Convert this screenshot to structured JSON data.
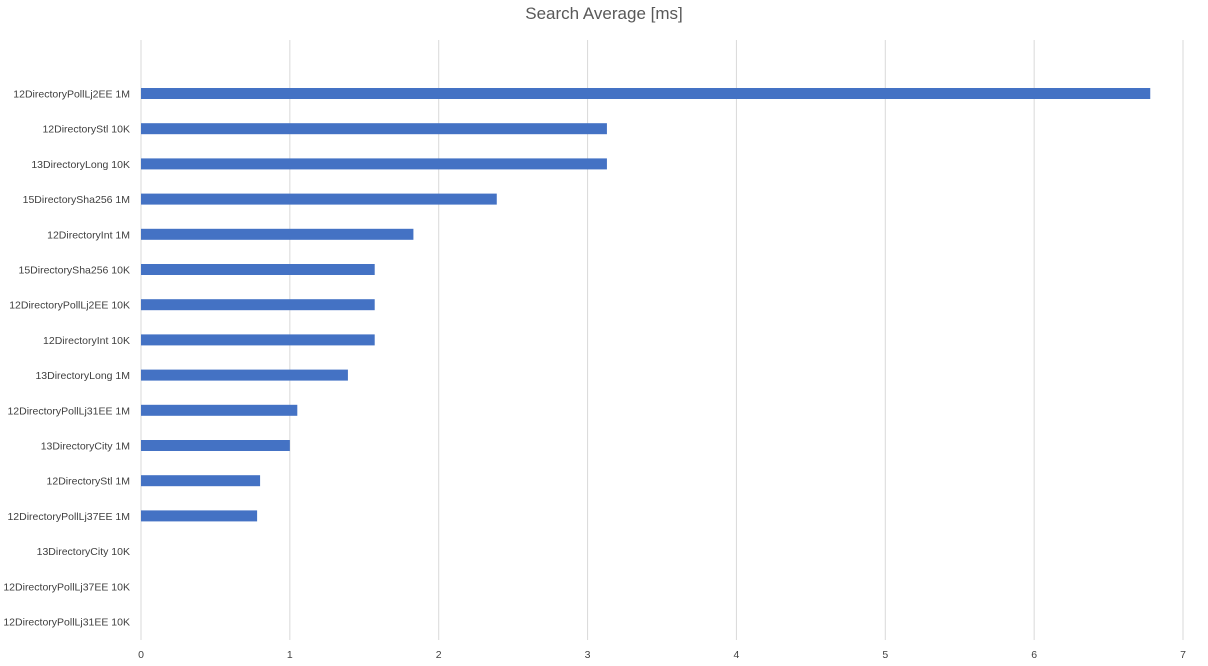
{
  "chart_data": {
    "type": "bar",
    "orientation": "horizontal",
    "title": "Search Average [ms]",
    "xlabel": "",
    "ylabel": "",
    "categories": [
      "12DirectoryPollLj2EE 1M",
      "12DirectoryStl 10K",
      "13DirectoryLong 10K",
      "15DirectorySha256 1M",
      "12DirectoryInt 1M",
      "15DirectorySha256 10K",
      "12DirectoryPollLj2EE 10K",
      "12DirectoryInt 10K",
      "13DirectoryLong 1M",
      "12DirectoryPollLj31EE 1M",
      "13DirectoryCity 1M",
      "12DirectoryStl 1M",
      "12DirectoryPollLj37EE 1M",
      "13DirectoryCity 10K",
      "12DirectoryPollLj37EE 10K",
      "12DirectoryPollLj31EE 10K"
    ],
    "values": [
      6.78,
      3.13,
      3.13,
      2.39,
      1.83,
      1.57,
      1.57,
      1.57,
      1.39,
      1.05,
      1.0,
      0.8,
      0.78,
      0,
      0,
      0
    ],
    "xlim": [
      0,
      7
    ],
    "xticks": [
      "0",
      "1",
      "2",
      "3",
      "4",
      "5",
      "6",
      "7"
    ],
    "grid": true,
    "bar_color": "#4472c4",
    "grid_color": "#d9d9d9"
  }
}
